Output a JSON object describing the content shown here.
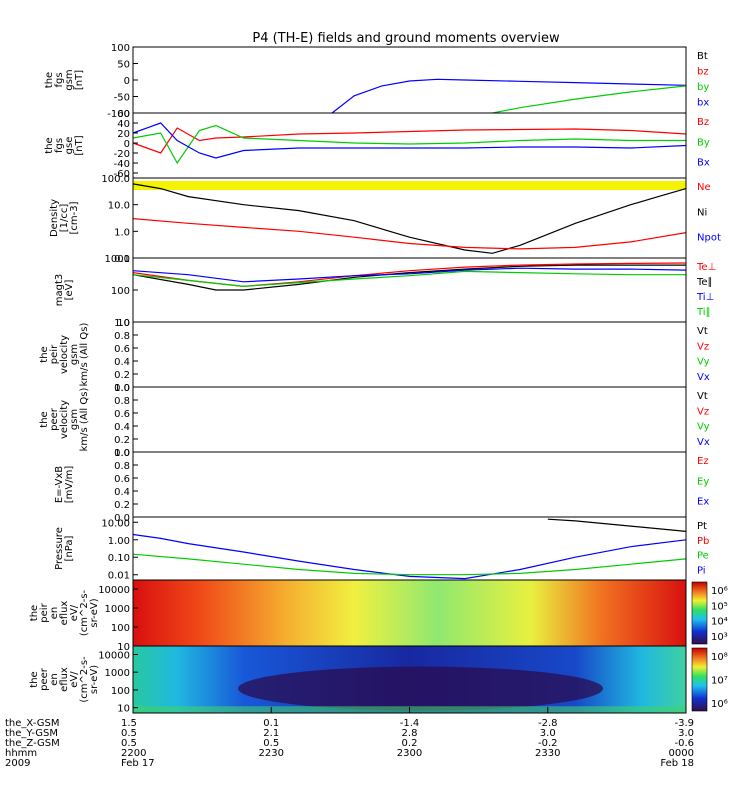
{
  "title": "P4 (TH-E) fields and ground moments overview",
  "chart_data": [
    {
      "type": "line",
      "panel": "fgs_gsm",
      "ylabel": [
        "the",
        "fgs",
        "gsm",
        "[nT]"
      ],
      "yticks": [
        100,
        50,
        0,
        -50,
        -100
      ],
      "ylim": [
        -100,
        100
      ],
      "legend": [
        {
          "name": "Bt",
          "color": "#000000"
        },
        {
          "name": "bz",
          "color": "#ff0000"
        },
        {
          "name": "by",
          "color": "#00cc00"
        },
        {
          "name": "bx",
          "color": "#0000ff"
        }
      ],
      "series": [
        {
          "name": "bx",
          "color": "#0000ff",
          "x": [
            0.36,
            0.4,
            0.45,
            0.5,
            0.55,
            0.6,
            0.7,
            0.8,
            0.9,
            1.0
          ],
          "y": [
            -100,
            -48,
            -18,
            -3,
            2,
            0,
            -4,
            -8,
            -12,
            -16
          ]
        },
        {
          "name": "by",
          "color": "#00cc00",
          "x": [
            0.65,
            0.7,
            0.8,
            0.9,
            1.0
          ],
          "y": [
            -100,
            -84,
            -58,
            -36,
            -18
          ]
        }
      ]
    },
    {
      "type": "line",
      "panel": "fgs_gse",
      "ylabel": [
        "the",
        "fgs",
        "gse",
        "[nT]"
      ],
      "yticks": [
        60,
        40,
        20,
        0,
        -20,
        -40,
        -60
      ],
      "ylim": [
        -70,
        60
      ],
      "legend": [
        {
          "name": "Bz",
          "color": "#ff0000"
        },
        {
          "name": "By",
          "color": "#00cc00"
        },
        {
          "name": "Bx",
          "color": "#0000ff"
        }
      ],
      "series": [
        {
          "name": "Bz",
          "color": "#ff0000",
          "x": [
            0,
            0.05,
            0.08,
            0.12,
            0.15,
            0.2,
            0.3,
            0.4,
            0.5,
            0.6,
            0.7,
            0.8,
            0.9,
            1.0
          ],
          "y": [
            0,
            -20,
            30,
            5,
            10,
            12,
            18,
            20,
            23,
            26,
            27,
            28,
            25,
            18
          ]
        },
        {
          "name": "By",
          "color": "#00cc00",
          "x": [
            0,
            0.05,
            0.08,
            0.12,
            0.15,
            0.2,
            0.3,
            0.4,
            0.5,
            0.6,
            0.7,
            0.8,
            0.9,
            1.0
          ],
          "y": [
            10,
            20,
            -40,
            25,
            35,
            10,
            5,
            0,
            -2,
            0,
            5,
            8,
            5,
            5
          ]
        },
        {
          "name": "Bx",
          "color": "#0000ff",
          "x": [
            0,
            0.05,
            0.08,
            0.12,
            0.15,
            0.2,
            0.3,
            0.4,
            0.5,
            0.6,
            0.7,
            0.8,
            0.9,
            1.0
          ],
          "y": [
            20,
            40,
            5,
            -20,
            -30,
            -15,
            -10,
            -10,
            -10,
            -10,
            -8,
            -8,
            -10,
            -5
          ]
        }
      ]
    },
    {
      "type": "line",
      "panel": "density",
      "ylabel": [
        "Density",
        "[1/cc]",
        "[cm-3]"
      ],
      "yticks": [
        "100.0",
        "10.0",
        "1.0",
        "0.1"
      ],
      "scale": "log",
      "ylim": [
        0.1,
        100
      ],
      "legend": [
        {
          "name": "Ne",
          "color": "#ff0000"
        },
        {
          "name": "Ni",
          "color": "#000000"
        },
        {
          "name": "Npot",
          "color": "#0000ff"
        }
      ],
      "series": [
        {
          "name": "Ni",
          "color": "#000000",
          "x": [
            0,
            0.05,
            0.1,
            0.2,
            0.3,
            0.4,
            0.5,
            0.6,
            0.65,
            0.7,
            0.8,
            0.9,
            0.95,
            1.0
          ],
          "y": [
            60,
            40,
            20,
            10,
            6,
            2.5,
            0.6,
            0.2,
            0.15,
            0.3,
            2,
            10,
            20,
            40
          ]
        },
        {
          "name": "Ne",
          "color": "#ff0000",
          "x": [
            0,
            0.1,
            0.2,
            0.3,
            0.4,
            0.5,
            0.6,
            0.7,
            0.8,
            0.9,
            1.0
          ],
          "y": [
            3,
            2,
            1.4,
            1,
            0.6,
            0.35,
            0.25,
            0.22,
            0.25,
            0.4,
            0.9
          ]
        }
      ]
    },
    {
      "type": "line",
      "panel": "temperature",
      "ylabel": [
        "magt3",
        "[eV]"
      ],
      "yticks": [
        "1000",
        "100",
        "10"
      ],
      "scale": "log",
      "ylim": [
        10,
        1000
      ],
      "legend": [
        {
          "name": "Te⊥",
          "color": "#ff0000"
        },
        {
          "name": "Te∥",
          "color": "#000000"
        },
        {
          "name": "Ti⊥",
          "color": "#0000ff"
        },
        {
          "name": "Ti∥",
          "color": "#00cc00"
        }
      ],
      "series": [
        {
          "name": "Te∥",
          "color": "#000000",
          "x": [
            0,
            0.1,
            0.15,
            0.2,
            0.3,
            0.4,
            0.5,
            0.6,
            0.7,
            0.8,
            0.9,
            1.0
          ],
          "y": [
            300,
            150,
            100,
            100,
            150,
            250,
            350,
            450,
            550,
            600,
            600,
            600
          ]
        },
        {
          "name": "Te⊥",
          "color": "#ff0000",
          "x": [
            0,
            0.1,
            0.2,
            0.3,
            0.4,
            0.5,
            0.6,
            0.7,
            0.8,
            0.9,
            1.0
          ],
          "y": [
            350,
            200,
            130,
            180,
            280,
            400,
            520,
            600,
            650,
            680,
            700
          ]
        },
        {
          "name": "Ti⊥",
          "color": "#0000ff",
          "x": [
            0,
            0.1,
            0.2,
            0.3,
            0.4,
            0.5,
            0.6,
            0.7,
            0.8,
            0.9,
            1.0
          ],
          "y": [
            400,
            300,
            180,
            220,
            280,
            320,
            420,
            480,
            450,
            450,
            420
          ]
        },
        {
          "name": "Ti∥",
          "color": "#00cc00",
          "x": [
            0,
            0.1,
            0.2,
            0.3,
            0.4,
            0.5,
            0.6,
            0.7,
            0.8,
            0.9,
            1.0
          ],
          "y": [
            300,
            200,
            130,
            170,
            220,
            280,
            380,
            350,
            320,
            300,
            300
          ]
        }
      ]
    },
    {
      "type": "line",
      "panel": "peir_velocity",
      "ylabel": [
        "the",
        "peir",
        "velocity",
        "gsm",
        "km/s (All Qs)"
      ],
      "yticks": [
        "1.0",
        "0.8",
        "0.6",
        "0.4",
        "0.2",
        "0.0"
      ],
      "ylim": [
        0,
        1
      ],
      "legend": [
        {
          "name": "Vt",
          "color": "#000000"
        },
        {
          "name": "Vz",
          "color": "#ff0000"
        },
        {
          "name": "Vy",
          "color": "#00cc00"
        },
        {
          "name": "Vx",
          "color": "#0000ff"
        }
      ],
      "series": []
    },
    {
      "type": "line",
      "panel": "peer_velocity",
      "ylabel": [
        "the",
        "peer",
        "velocity",
        "gsm",
        "km/s (All Qs)"
      ],
      "yticks": [
        "1.0",
        "0.8",
        "0.6",
        "0.4",
        "0.2",
        "0.0"
      ],
      "ylim": [
        0,
        1
      ],
      "legend": [
        {
          "name": "Vt",
          "color": "#000000"
        },
        {
          "name": "Vz",
          "color": "#ff0000"
        },
        {
          "name": "Vy",
          "color": "#00cc00"
        },
        {
          "name": "Vx",
          "color": "#0000ff"
        }
      ],
      "series": []
    },
    {
      "type": "line",
      "panel": "efield",
      "ylabel": [
        "E=-VxB",
        "[mV/m]"
      ],
      "yticks": [
        "1.0",
        "0.8",
        "0.6",
        "0.4",
        "0.2",
        "0.0"
      ],
      "ylim": [
        0,
        1
      ],
      "legend": [
        {
          "name": "Ez",
          "color": "#ff0000"
        },
        {
          "name": "Ey",
          "color": "#00cc00"
        },
        {
          "name": "Ex",
          "color": "#0000ff"
        }
      ],
      "series": []
    },
    {
      "type": "line",
      "panel": "pressure",
      "ylabel": [
        "Pressure",
        "[nPa]"
      ],
      "yticks": [
        "10.00",
        "1.00",
        "0.10",
        "0.01"
      ],
      "scale": "log",
      "ylim": [
        0.005,
        20
      ],
      "legend": [
        {
          "name": "Pt",
          "color": "#000000"
        },
        {
          "name": "Pb",
          "color": "#ff0000"
        },
        {
          "name": "Pe",
          "color": "#00cc00"
        },
        {
          "name": "Pi",
          "color": "#0000ff"
        }
      ],
      "series": [
        {
          "name": "Pi",
          "color": "#0000ff",
          "x": [
            0,
            0.05,
            0.1,
            0.2,
            0.3,
            0.4,
            0.5,
            0.6,
            0.7,
            0.8,
            0.9,
            1.0
          ],
          "y": [
            2,
            1.2,
            0.6,
            0.2,
            0.06,
            0.02,
            0.008,
            0.006,
            0.02,
            0.1,
            0.4,
            1
          ]
        },
        {
          "name": "Pe",
          "color": "#00cc00",
          "x": [
            0,
            0.1,
            0.2,
            0.3,
            0.4,
            0.5,
            0.6,
            0.7,
            0.8,
            0.9,
            1.0
          ],
          "y": [
            0.15,
            0.08,
            0.04,
            0.02,
            0.012,
            0.01,
            0.01,
            0.012,
            0.02,
            0.04,
            0.08
          ]
        },
        {
          "name": "Pt",
          "color": "#000000",
          "x": [
            0.75,
            0.8,
            0.9,
            1.0
          ],
          "y": [
            15,
            12,
            6,
            3
          ]
        }
      ]
    },
    {
      "type": "heatmap",
      "panel": "peir_eflux",
      "ylabel": [
        "the",
        "peir",
        "en",
        "eflux",
        "eV/",
        "(cm^2-s-",
        "sr-eV)"
      ],
      "yticks": [
        "10000",
        "1000",
        "100",
        "10"
      ],
      "scale": "log",
      "ylim": [
        10,
        30000
      ],
      "colorbar": {
        "ticks": [
          "10⁶",
          "10⁵",
          "10⁴",
          "10³"
        ],
        "label": "eV/(cm^2-s-sr-eV)"
      }
    },
    {
      "type": "heatmap",
      "panel": "peer_eflux",
      "ylabel": [
        "the",
        "peer",
        "en",
        "eflux",
        "eV/",
        "(cm^2-s-",
        "sr-eV)"
      ],
      "yticks": [
        "10000",
        "1000",
        "100",
        "10"
      ],
      "scale": "log",
      "ylim": [
        5,
        30000
      ],
      "colorbar": {
        "ticks": [
          "10⁸",
          "10⁷",
          "10⁶"
        ],
        "label": "eV/(cm^2-s-sr-eV)"
      }
    }
  ],
  "x_axis": {
    "rows": [
      {
        "label": "the_X-GSM",
        "values": [
          "1.5",
          "0.1",
          "-1.4",
          "-2.8",
          "-3.9"
        ]
      },
      {
        "label": "the_Y-GSM",
        "values": [
          "0.5",
          "2.1",
          "2.8",
          "3.0",
          "3.0"
        ]
      },
      {
        "label": "the_Z-GSM",
        "values": [
          "0.5",
          "0.5",
          "0.2",
          "-0.2",
          "-0.6"
        ]
      },
      {
        "label": "hhmm",
        "values": [
          "2200",
          "2230",
          "2300",
          "2330",
          "0000"
        ]
      },
      {
        "label": "2009",
        "values": [
          "Feb 17",
          "",
          "",
          "",
          "Feb 18"
        ]
      }
    ]
  }
}
